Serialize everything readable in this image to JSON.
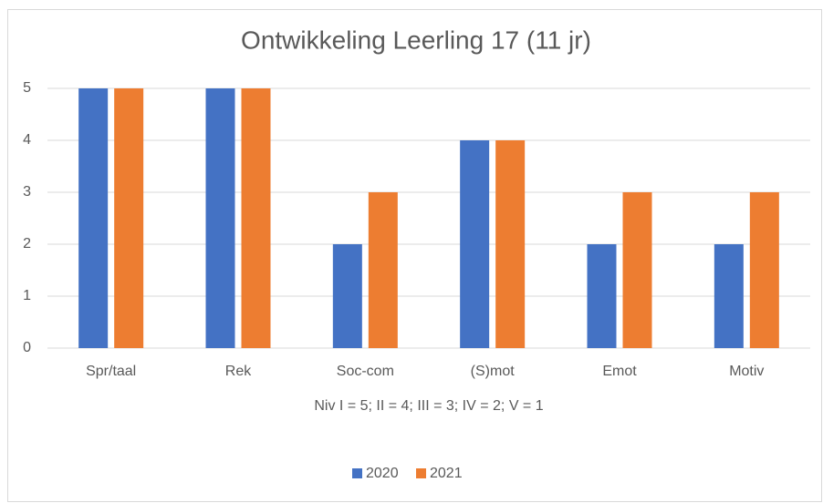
{
  "chart_data": {
    "type": "bar",
    "title": "Ontwikkeling Leerling 17 (11 jr)",
    "x_label": "Niv  I = 5; II = 4; III = 3; IV = 2; V = 1",
    "categories": [
      "Spr/taal",
      "Rek",
      "Soc-com",
      "(S)mot",
      "Emot",
      "Motiv"
    ],
    "series": [
      {
        "name": "2020",
        "color": "#4472c4",
        "values": [
          5,
          5,
          2,
          4,
          2,
          2
        ]
      },
      {
        "name": "2021",
        "color": "#ed7d31",
        "values": [
          5,
          5,
          3,
          4,
          3,
          3
        ]
      }
    ],
    "ylim": [
      0,
      5
    ],
    "yticks": [
      0,
      1,
      2,
      3,
      4,
      5
    ],
    "grid": true,
    "legend": "bottom"
  }
}
